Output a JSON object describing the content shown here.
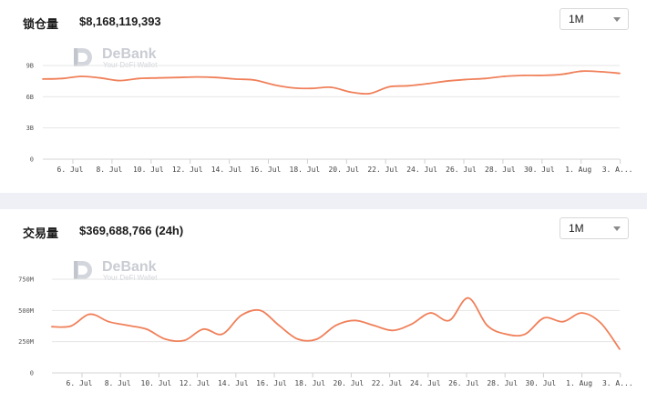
{
  "tvl_panel": {
    "label": "锁仓量",
    "value": "$8,168,119,393",
    "range_select": "1M",
    "watermark": {
      "name": "DeBank",
      "tagline": "Your DeFi Wallet"
    },
    "y_ticks": [
      {
        "value": 0,
        "label": "0"
      },
      {
        "value": 3,
        "label": "3B"
      },
      {
        "value": 6,
        "label": "6B"
      },
      {
        "value": 9,
        "label": "9B"
      }
    ],
    "x_ticks": [
      "6. Jul",
      "8. Jul",
      "10. Jul",
      "12. Jul",
      "14. Jul",
      "16. Jul",
      "18. Jul",
      "20. Jul",
      "22. Jul",
      "24. Jul",
      "26. Jul",
      "28. Jul",
      "30. Jul",
      "1. Aug",
      "3. A..."
    ],
    "line_color": "#f0805a"
  },
  "volume_panel": {
    "label": "交易量",
    "value": "$369,688,766 (24h)",
    "range_select": "1M",
    "watermark": {
      "name": "DeBank",
      "tagline": "Your DeFi Wallet"
    },
    "y_ticks": [
      {
        "value": 0,
        "label": "0"
      },
      {
        "value": 250,
        "label": "250M"
      },
      {
        "value": 500,
        "label": "500M"
      },
      {
        "value": 750,
        "label": "750M"
      }
    ],
    "x_ticks": [
      "6. Jul",
      "8. Jul",
      "10. Jul",
      "12. Jul",
      "14. Jul",
      "16. Jul",
      "18. Jul",
      "20. Jul",
      "22. Jul",
      "24. Jul",
      "26. Jul",
      "28. Jul",
      "30. Jul",
      "1. Aug",
      "3. A..."
    ],
    "line_color": "#f0805a"
  },
  "chart_data": [
    {
      "type": "line",
      "ylabel": "",
      "xlabel": "",
      "ylim": [
        0,
        9
      ],
      "x_start": "5. Jul",
      "x_end": "3. Aug",
      "series": [
        {
          "values": [
            7.7,
            7.75,
            7.95,
            7.8,
            7.55,
            7.75,
            7.8,
            7.85,
            7.9,
            7.85,
            7.7,
            7.6,
            7.15,
            6.85,
            6.8,
            6.9,
            6.45,
            6.3,
            6.95,
            7.05,
            7.25,
            7.5,
            7.65,
            7.75,
            7.95,
            8.05,
            8.05,
            8.15,
            8.45,
            8.4,
            8.25
          ]
        }
      ]
    },
    {
      "type": "line",
      "ylabel": "",
      "xlabel": "",
      "ylim": [
        0,
        750
      ],
      "x_start": "5. Jul",
      "x_end": "3. Aug",
      "series": [
        {
          "values": [
            370,
            375,
            470,
            410,
            380,
            350,
            270,
            260,
            350,
            310,
            460,
            500,
            380,
            270,
            270,
            380,
            420,
            380,
            340,
            390,
            480,
            420,
            600,
            380,
            310,
            310,
            440,
            410,
            480,
            400,
            190
          ]
        }
      ]
    }
  ]
}
